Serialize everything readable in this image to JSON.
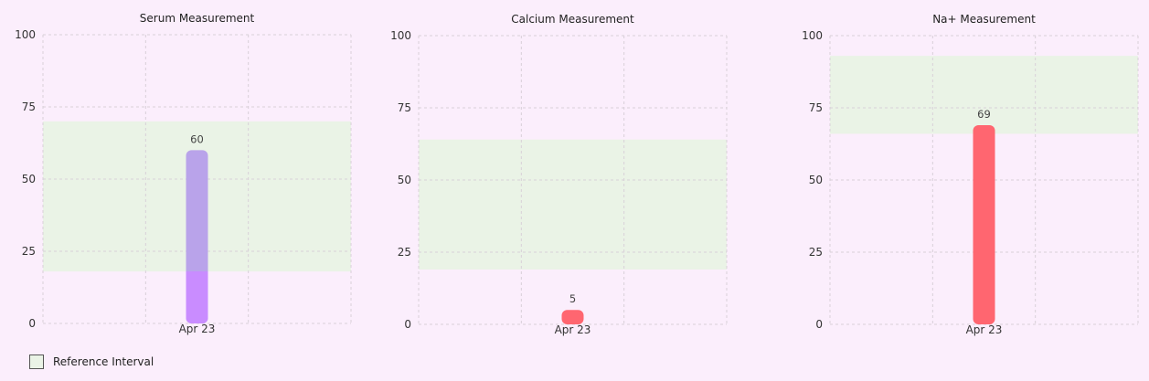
{
  "chart_data": [
    {
      "type": "bar",
      "title": "Serum Measurement",
      "categories": [
        "Apr 23"
      ],
      "values": [
        60
      ],
      "ylim": [
        0,
        100
      ],
      "yticks": [
        "0",
        "25",
        "50",
        "75",
        "100"
      ],
      "reference_interval": [
        18,
        70
      ],
      "bar_color_in_range": "#b9a3ea",
      "bar_color_out_range": "#c98cff",
      "grid": true
    },
    {
      "type": "bar",
      "title": "Calcium Measurement",
      "categories": [
        "Apr 23"
      ],
      "values": [
        5
      ],
      "ylim": [
        0,
        100
      ],
      "yticks": [
        "0",
        "25",
        "50",
        "75",
        "100"
      ],
      "reference_interval": [
        19,
        64
      ],
      "bar_color_out_range": "#ff6670",
      "grid": true
    },
    {
      "type": "bar",
      "title": "Na+ Measurement",
      "categories": [
        "Apr 23"
      ],
      "values": [
        69
      ],
      "ylim": [
        0,
        100
      ],
      "yticks": [
        "0",
        "25",
        "50",
        "75",
        "100"
      ],
      "reference_interval": [
        66,
        93
      ],
      "bar_color_out_range": "#ff6670",
      "grid": true
    }
  ],
  "legend": {
    "label": "Reference Interval",
    "swatch_color": "#eaf3e6"
  },
  "colors": {
    "background": "#fbeefc",
    "reference_band": "#eaf3e6",
    "grid": "#d8d0d8"
  }
}
